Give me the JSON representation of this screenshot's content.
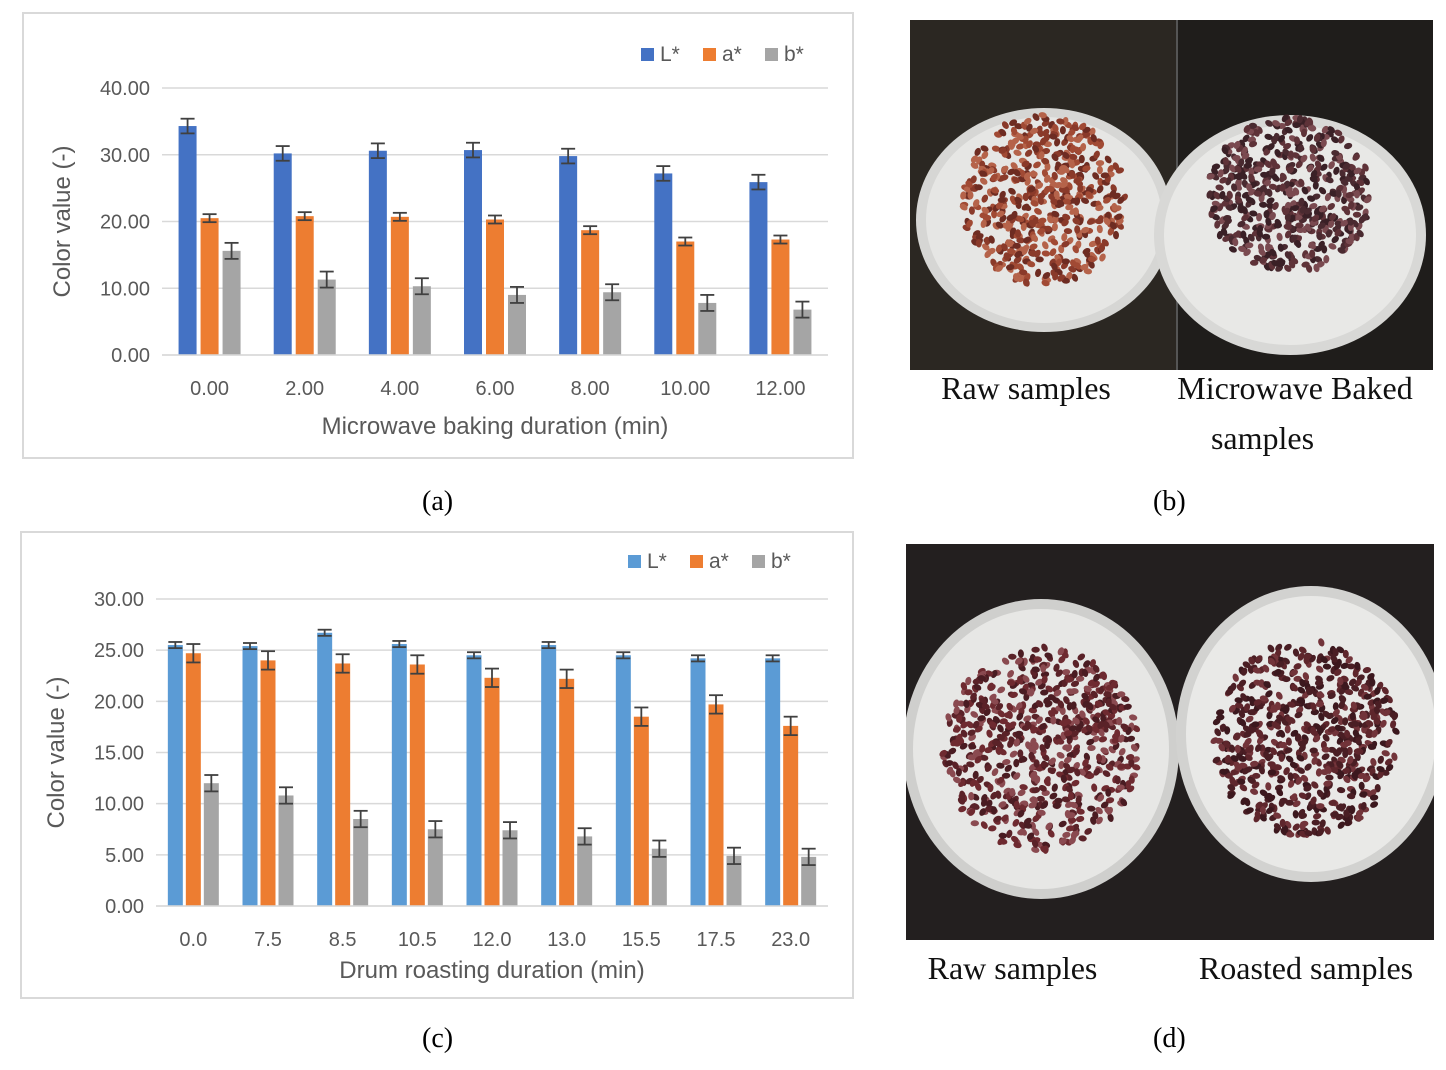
{
  "figure": {
    "panel_labels": [
      "(a)",
      "(b)",
      "(c)",
      "(d)"
    ],
    "panel_b": {
      "caption_left": "Raw samples",
      "caption_right_line1": "Microwave Baked",
      "caption_right_line2": "samples"
    },
    "panel_d": {
      "caption_left": "Raw samples",
      "caption_right": "Roasted samples"
    }
  },
  "chart_data": [
    {
      "type": "bar",
      "panel": "a",
      "title": "",
      "xlabel": "Microwave baking duration (min)",
      "ylabel": "Color value (-)",
      "categories": [
        "0.00",
        "2.00",
        "4.00",
        "6.00",
        "8.00",
        "10.00",
        "12.00"
      ],
      "ylim": [
        0,
        40
      ],
      "yticks": [
        "0.00",
        "10.00",
        "20.00",
        "30.00",
        "40.00"
      ],
      "grid": true,
      "legend": "top-right",
      "series": [
        {
          "name": "L*",
          "color": "#4472C4",
          "values": [
            34.3,
            30.2,
            30.6,
            30.7,
            29.8,
            27.2,
            25.9
          ],
          "errors": [
            1.1,
            1.1,
            1.1,
            1.1,
            1.1,
            1.1,
            1.1
          ]
        },
        {
          "name": "a*",
          "color": "#ED7D31",
          "values": [
            20.5,
            20.8,
            20.7,
            20.3,
            18.7,
            17.0,
            17.3
          ],
          "errors": [
            0.6,
            0.6,
            0.6,
            0.6,
            0.6,
            0.6,
            0.6
          ]
        },
        {
          "name": "b*",
          "color": "#A5A5A5",
          "values": [
            15.6,
            11.3,
            10.3,
            9.0,
            9.4,
            7.8,
            6.8
          ],
          "errors": [
            1.2,
            1.2,
            1.2,
            1.2,
            1.2,
            1.2,
            1.2
          ]
        }
      ]
    },
    {
      "type": "bar",
      "panel": "c",
      "title": "",
      "xlabel": "Drum roasting duration (min)",
      "ylabel": "Color value (-)",
      "categories": [
        "0.0",
        "7.5",
        "8.5",
        "10.5",
        "12.0",
        "13.0",
        "15.5",
        "17.5",
        "23.0"
      ],
      "ylim": [
        0,
        30
      ],
      "yticks": [
        "0.00",
        "5.00",
        "10.00",
        "15.00",
        "20.00",
        "25.00",
        "30.00"
      ],
      "grid": true,
      "legend": "top-right",
      "series": [
        {
          "name": "L*",
          "color": "#5B9BD5",
          "values": [
            25.5,
            25.4,
            26.7,
            25.6,
            24.5,
            25.5,
            24.5,
            24.2,
            24.2
          ],
          "errors": [
            0.3,
            0.3,
            0.3,
            0.3,
            0.3,
            0.3,
            0.3,
            0.3,
            0.3
          ]
        },
        {
          "name": "a*",
          "color": "#ED7D31",
          "values": [
            24.7,
            24.0,
            23.7,
            23.6,
            22.3,
            22.2,
            18.5,
            19.7,
            17.6
          ],
          "errors": [
            0.9,
            0.9,
            0.9,
            0.9,
            0.9,
            0.9,
            0.9,
            0.9,
            0.9
          ]
        },
        {
          "name": "b*",
          "color": "#A5A5A5",
          "values": [
            12.0,
            10.8,
            8.5,
            7.5,
            7.4,
            6.8,
            5.6,
            4.9,
            4.8
          ],
          "errors": [
            0.8,
            0.8,
            0.8,
            0.8,
            0.8,
            0.8,
            0.8,
            0.8,
            0.8
          ]
        }
      ]
    }
  ]
}
